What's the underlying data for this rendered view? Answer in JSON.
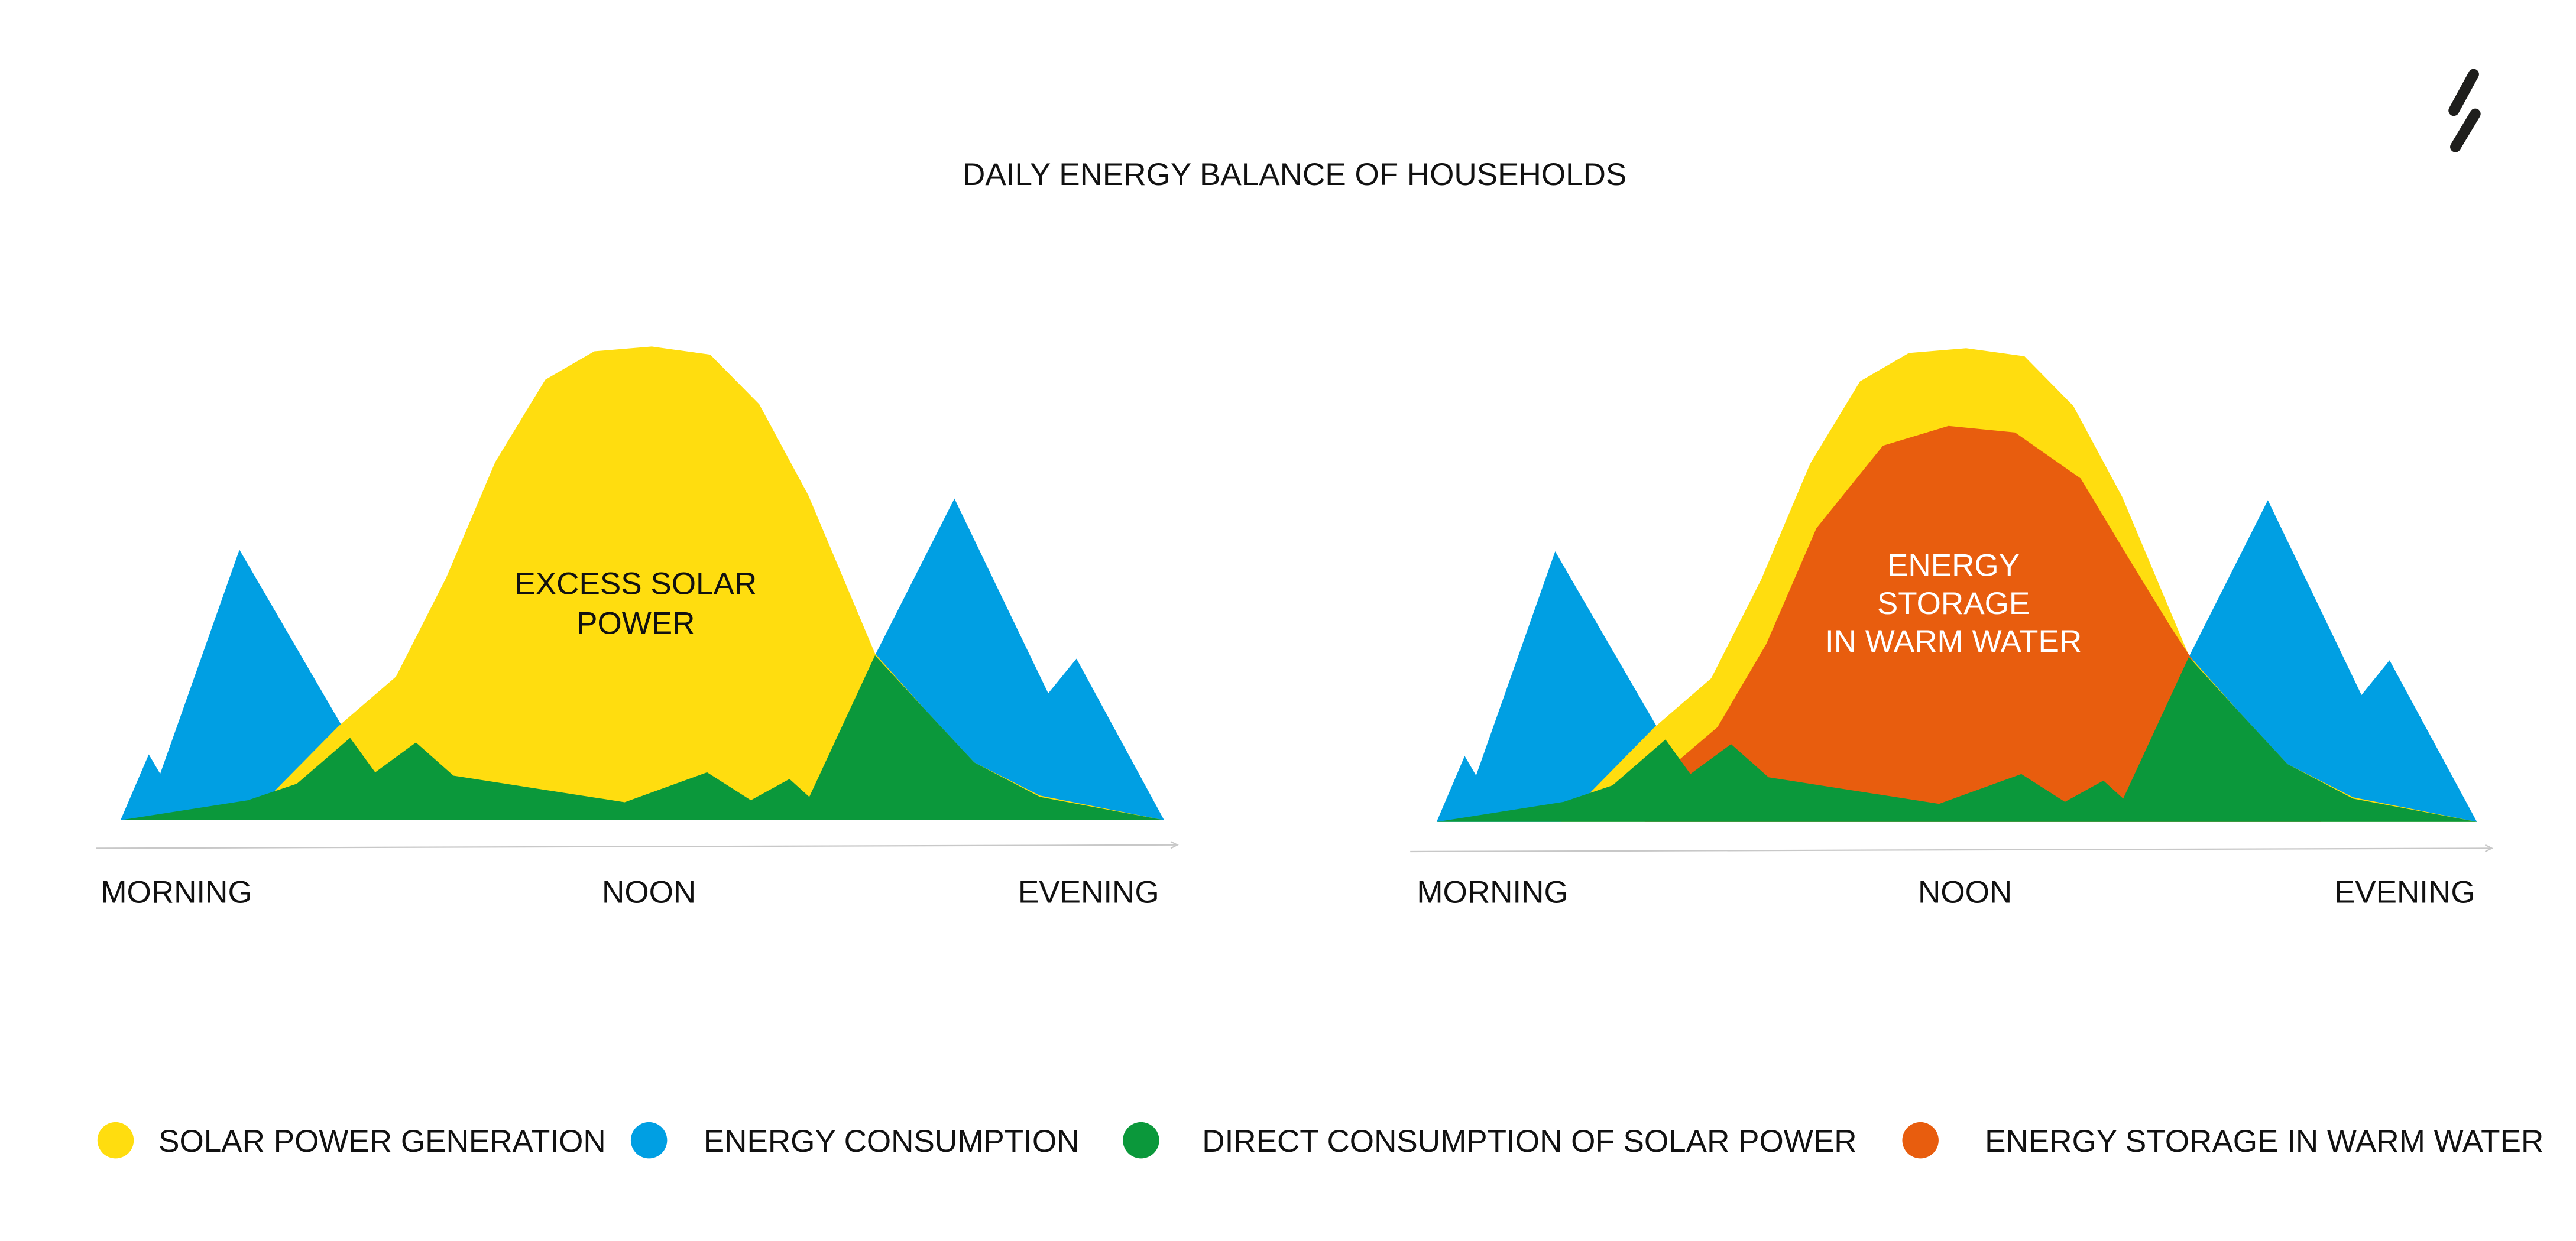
{
  "title": "DAILY ENERGY BALANCE OF HOUSEHOLDS",
  "colors": {
    "solar": "#FFDD0F",
    "consumption": "#009FE3",
    "direct": "#0B983B",
    "storage": "#E85D0E",
    "axis": "#C8C8C8",
    "text": "#111111",
    "logo": "#1E1E1C"
  },
  "logo": {
    "icon": "double-slash-bolt-icon"
  },
  "legend": [
    {
      "label": "SOLAR POWER GENERATION",
      "color": "#FFDD0F"
    },
    {
      "label": "ENERGY CONSUMPTION",
      "color": "#009FE3"
    },
    {
      "label": "DIRECT CONSUMPTION OF SOLAR POWER",
      "color": "#0B983B"
    },
    {
      "label": "ENERGY STORAGE IN WARM WATER",
      "color": "#E85D0E"
    }
  ],
  "chart_data": [
    {
      "type": "area",
      "title": "",
      "x_ticks": [
        "MORNING",
        "NOON",
        "EVENING"
      ],
      "annotation": [
        "EXCESS SOLAR",
        "POWER"
      ],
      "grid": false,
      "legend_position": "bottom",
      "series": [
        {
          "name": "ENERGY CONSUMPTION",
          "points": [
            [
              0,
              0
            ],
            [
              2.7,
              13.9
            ],
            [
              3.8,
              9.8
            ],
            [
              11.4,
              57.1
            ],
            [
              21.7,
              18.1
            ],
            [
              24,
              8
            ],
            [
              50,
              4
            ],
            [
              72.3,
              34.8
            ],
            [
              79.9,
              67.9
            ],
            [
              88.9,
              26.8
            ],
            [
              91.6,
              34.1
            ],
            [
              100,
              0
            ]
          ]
        },
        {
          "name": "SOLAR POWER GENERATION",
          "points": [
            [
              12,
              0
            ],
            [
              20.9,
              19.9
            ],
            [
              26.4,
              30.3
            ],
            [
              31.2,
              51.2
            ],
            [
              35.9,
              75.6
            ],
            [
              40.7,
              93
            ],
            [
              45.4,
              99
            ],
            [
              50.9,
              100
            ],
            [
              56.5,
              98.3
            ],
            [
              61.2,
              87.8
            ],
            [
              65.9,
              68.6
            ],
            [
              69.9,
              47.7
            ],
            [
              72.3,
              35.2
            ],
            [
              77.1,
              23.3
            ],
            [
              81.8,
              12.2
            ],
            [
              88.1,
              5.2
            ],
            [
              100,
              0
            ]
          ]
        },
        {
          "name": "DIRECT CONSUMPTION OF SOLAR POWER",
          "points": [
            [
              0,
              0
            ],
            [
              12.2,
              4.2
            ],
            [
              16.9,
              7.7
            ],
            [
              22,
              17.4
            ],
            [
              24.4,
              10.1
            ],
            [
              28.3,
              16.4
            ],
            [
              31.9,
              9.4
            ],
            [
              48.3,
              3.8
            ],
            [
              56.2,
              10.1
            ],
            [
              60.4,
              4.2
            ],
            [
              64.1,
              8.7
            ],
            [
              66,
              4.9
            ],
            [
              72.3,
              34.8
            ],
            [
              77.1,
              23.3
            ],
            [
              81.8,
              12.2
            ],
            [
              88.1,
              4.9
            ],
            [
              100,
              0
            ]
          ]
        }
      ]
    },
    {
      "type": "area",
      "title": "",
      "x_ticks": [
        "MORNING",
        "NOON",
        "EVENING"
      ],
      "annotation": [
        "ENERGY",
        "STORAGE",
        "IN WARM WATER"
      ],
      "grid": false,
      "legend_position": "bottom",
      "series": [
        {
          "name": "ENERGY CONSUMPTION",
          "points": [
            [
              0,
              0
            ],
            [
              2.7,
              13.9
            ],
            [
              3.8,
              9.8
            ],
            [
              11.4,
              57.1
            ],
            [
              21.7,
              18.1
            ],
            [
              24,
              8
            ],
            [
              50,
              4
            ],
            [
              72.3,
              34.8
            ],
            [
              79.9,
              67.9
            ],
            [
              88.9,
              26.8
            ],
            [
              91.6,
              34.1
            ],
            [
              100,
              0
            ]
          ]
        },
        {
          "name": "SOLAR POWER GENERATION",
          "points": [
            [
              12,
              0
            ],
            [
              20.9,
              19.9
            ],
            [
              26.4,
              30.3
            ],
            [
              31.2,
              51.2
            ],
            [
              35.9,
              75.6
            ],
            [
              40.7,
              93
            ],
            [
              45.4,
              99
            ],
            [
              50.9,
              100
            ],
            [
              56.5,
              98.3
            ],
            [
              61.2,
              87.8
            ],
            [
              65.9,
              68.6
            ],
            [
              69.9,
              47.7
            ],
            [
              72.3,
              35.2
            ],
            [
              77.1,
              23.3
            ],
            [
              81.8,
              12.2
            ],
            [
              88.1,
              5.2
            ],
            [
              100,
              0
            ]
          ]
        },
        {
          "name": "ENERGY STORAGE IN WARM WATER",
          "points": [
            [
              20,
              0
            ],
            [
              23,
              12.5
            ],
            [
              27,
              20
            ],
            [
              31.7,
              37.6
            ],
            [
              36.5,
              62
            ],
            [
              42.9,
              79.4
            ],
            [
              49.2,
              83.6
            ],
            [
              55.6,
              82.2
            ],
            [
              61.9,
              72.5
            ],
            [
              66.7,
              55
            ],
            [
              70.6,
              41
            ],
            [
              72.7,
              34
            ],
            [
              78,
              15
            ],
            [
              85,
              0
            ]
          ]
        },
        {
          "name": "DIRECT CONSUMPTION OF SOLAR POWER",
          "points": [
            [
              0,
              0
            ],
            [
              12.2,
              4.2
            ],
            [
              16.9,
              7.7
            ],
            [
              22,
              17.4
            ],
            [
              24.4,
              10.1
            ],
            [
              28.3,
              16.4
            ],
            [
              31.9,
              9.4
            ],
            [
              48.3,
              3.8
            ],
            [
              56.2,
              10.1
            ],
            [
              60.4,
              4.2
            ],
            [
              64.1,
              8.7
            ],
            [
              66,
              4.9
            ],
            [
              72.3,
              34.8
            ],
            [
              77.1,
              23.3
            ],
            [
              81.8,
              12.2
            ],
            [
              88.1,
              4.9
            ],
            [
              100,
              0
            ]
          ]
        }
      ]
    }
  ]
}
